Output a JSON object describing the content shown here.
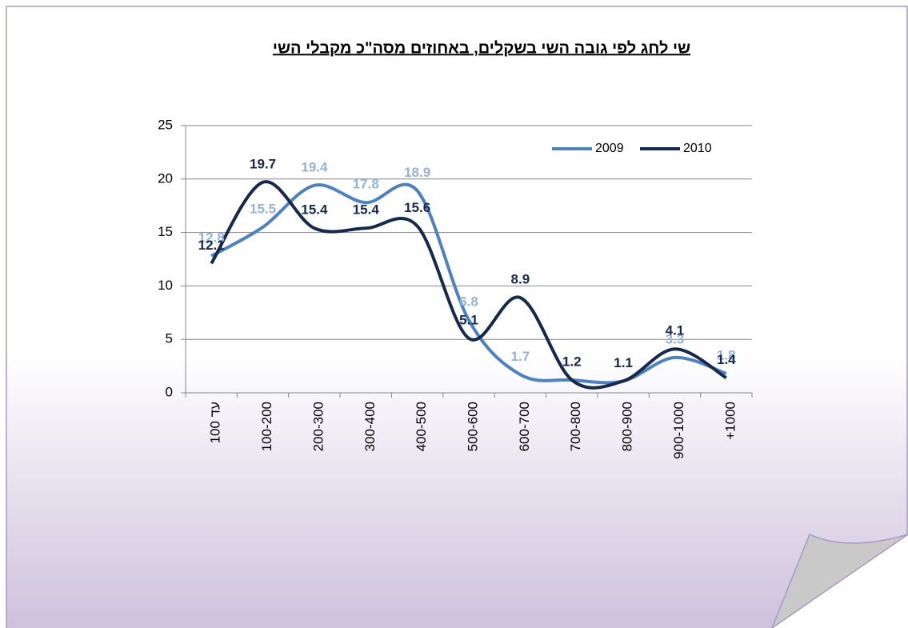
{
  "chart_data": {
    "type": "line",
    "title": "שי לחג לפי גובה השי בשקלים, באחוזים מסה\"כ מקבלי השי",
    "categories": [
      "עד 100",
      "100-200",
      "200-300",
      "300-400",
      "400-500",
      "500-600",
      "600-700",
      "700-800",
      "800-900",
      "900-1000",
      "+1000"
    ],
    "series": [
      {
        "name": "2009",
        "color": "#4f81bd",
        "label_color": "#95b3d7",
        "values": [
          12.8,
          15.5,
          19.4,
          17.8,
          18.9,
          6.8,
          1.7,
          1.2,
          1.1,
          3.3,
          1.8
        ]
      },
      {
        "name": "2010",
        "color": "#17294a",
        "label_color": "#17294a",
        "values": [
          12.1,
          19.7,
          15.4,
          15.4,
          15.6,
          5.1,
          8.9,
          1.2,
          1.1,
          4.1,
          1.4
        ]
      }
    ],
    "ylim": [
      0,
      25
    ],
    "yticks": [
      0,
      5,
      10,
      15,
      20,
      25
    ],
    "grid": true,
    "smooth": true,
    "legend": "top-right"
  }
}
